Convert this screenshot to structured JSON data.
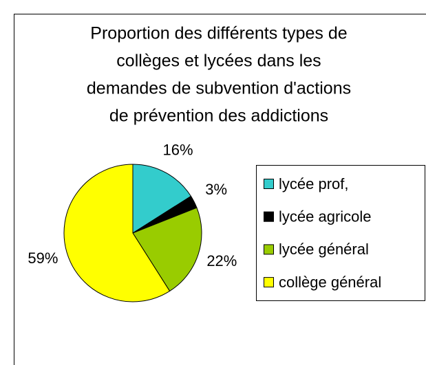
{
  "chart_data": {
    "type": "pie",
    "title": [
      "Proportion des différents types de",
      "collèges et lycées dans les",
      "demandes de subvention d'actions",
      "de prévention des addictions"
    ],
    "categories": [
      "lycée prof,",
      "lycée agricole",
      "lycée général",
      "collège général"
    ],
    "values": [
      16,
      3,
      22,
      59
    ],
    "value_labels": [
      "16%",
      "3%",
      "22%",
      "59%"
    ],
    "colors": [
      "#33CCCC",
      "#000000",
      "#99CC00",
      "#FFFF00"
    ],
    "legend": "right"
  }
}
